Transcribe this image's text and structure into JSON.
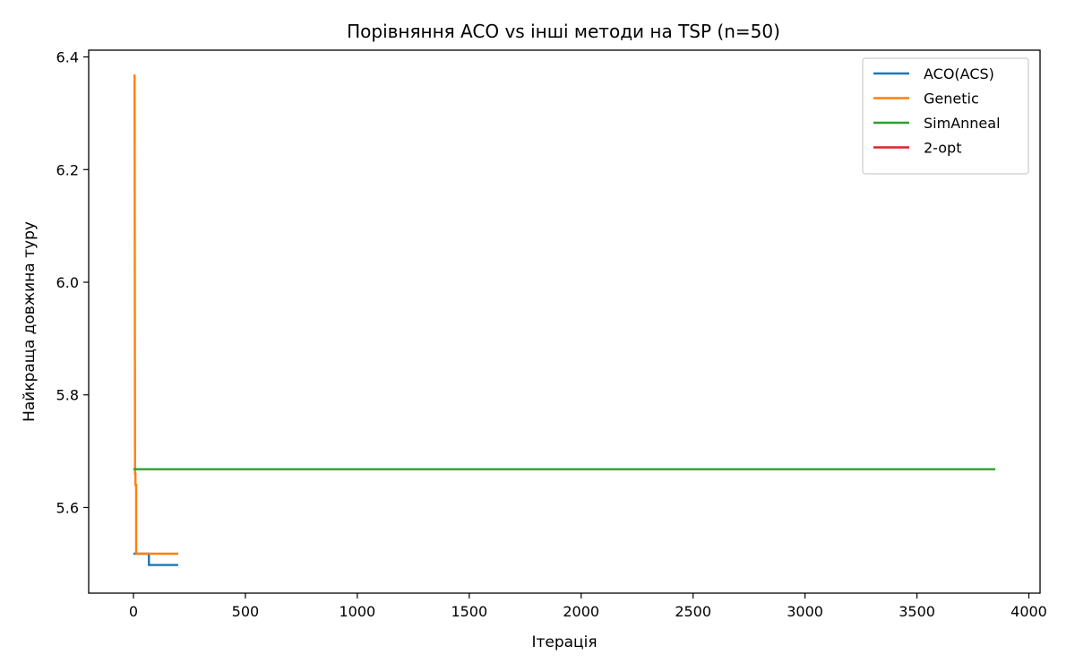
{
  "chart_data": {
    "type": "line",
    "title": "Порівняння ACO vs інші методи на TSP (n=50)",
    "xlabel": "Ітерація",
    "ylabel": "Найкраща довжина туру",
    "xlim": [
      -200,
      4050
    ],
    "ylim": [
      5.448,
      6.412
    ],
    "xticks": [
      0,
      500,
      1000,
      1500,
      2000,
      2500,
      3000,
      3500,
      4000
    ],
    "yticks": [
      5.6,
      5.8,
      6.0,
      6.2,
      6.4
    ],
    "grid": false,
    "legend_position": "top-right",
    "series": [
      {
        "name": "ACO(ACS)",
        "color": "#1f77b4",
        "x": [
          0,
          69,
          69,
          200
        ],
        "y": [
          5.518,
          5.518,
          5.498,
          5.498
        ]
      },
      {
        "name": "Genetic",
        "color": "#ff7f0e",
        "x": [
          0,
          5,
          7,
          7,
          9,
          9,
          12,
          12,
          200
        ],
        "y": [
          6.367,
          6.367,
          5.7,
          5.66,
          5.66,
          5.64,
          5.64,
          5.518,
          5.518
        ]
      },
      {
        "name": "SimAnneal",
        "color": "#2ca02c",
        "x": [
          0,
          3850
        ],
        "y": [
          5.668,
          5.668
        ]
      },
      {
        "name": "2-opt",
        "color": "#d62728",
        "x": [],
        "y": []
      }
    ]
  }
}
